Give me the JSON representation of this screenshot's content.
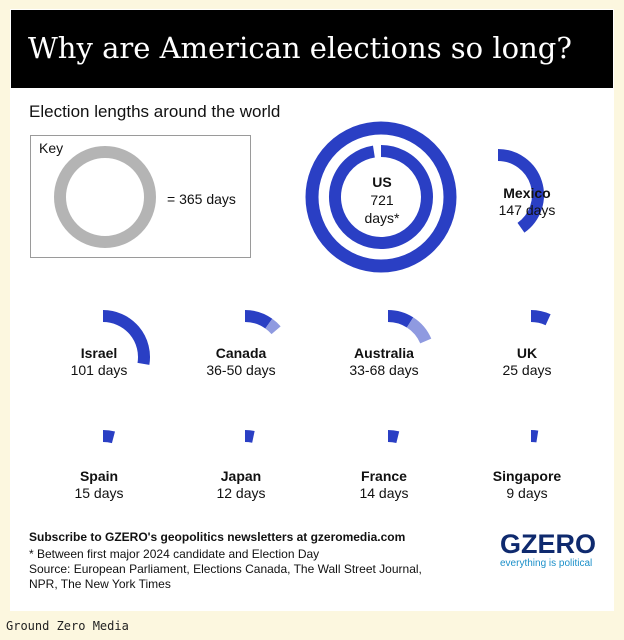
{
  "header": {
    "title": "Why are American elections so long?",
    "subtitle": "Election lengths around the world"
  },
  "key": {
    "label": "Key",
    "equals": "= 365 days"
  },
  "colors": {
    "primary": "#2a3fc4",
    "secondary": "#8f9ae0",
    "key_ring": "#b4b4b4"
  },
  "chart_data": {
    "type": "radial",
    "unit": "days",
    "full_ring_days": 365,
    "countries": [
      {
        "name": "US",
        "days_label": "721",
        "days_suffix": "days*",
        "min": 721,
        "max": 721
      },
      {
        "name": "Mexico",
        "days_label": "147 days",
        "min": 147,
        "max": 147
      },
      {
        "name": "Israel",
        "days_label": "101 days",
        "min": 101,
        "max": 101
      },
      {
        "name": "Canada",
        "days_label": "36-50 days",
        "min": 36,
        "max": 50
      },
      {
        "name": "Australia",
        "days_label": "33-68 days",
        "min": 33,
        "max": 68
      },
      {
        "name": "UK",
        "days_label": "25 days",
        "min": 25,
        "max": 25
      },
      {
        "name": "Spain",
        "days_label": "15 days",
        "min": 15,
        "max": 15
      },
      {
        "name": "Japan",
        "days_label": "12 days",
        "min": 12,
        "max": 12
      },
      {
        "name": "France",
        "days_label": "14 days",
        "min": 14,
        "max": 14
      },
      {
        "name": "Singapore",
        "days_label": "9 days",
        "min": 9,
        "max": 9
      }
    ]
  },
  "footer": {
    "subscribe": "Subscribe to GZERO's geopolitics newsletters at gzeromedia.com",
    "note": "* Between first major 2024 candidate and Election Day",
    "source_line1": "Source: European Parliament, Elections Canada, The Wall Street Journal,",
    "source_line2": "NPR, The New York Times"
  },
  "logo": {
    "text": "GZERO",
    "tagline": "everything is political"
  },
  "credit": "Ground Zero Media"
}
